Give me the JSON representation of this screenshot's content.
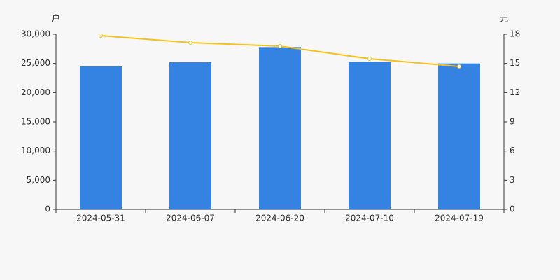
{
  "chart_data": {
    "type": "bar_line",
    "y_label": "户",
    "y2_label": "元",
    "categories": [
      "2024-05-31",
      "2024-06-07",
      "2024-06-20",
      "2024-07-10",
      "2024-07-19"
    ],
    "series": [
      {
        "type": "bar",
        "color": "#3482e2",
        "values": [
          24500,
          25200,
          27800,
          25300,
          25000
        ]
      },
      {
        "type": "line",
        "axis": "y2",
        "color": "#f5c21b",
        "values": [
          17.86,
          17.14,
          16.78,
          15.48,
          14.69
        ]
      }
    ],
    "ylim": [
      0,
      30000
    ],
    "yticks": [
      0,
      {
        "value": 5000,
        "label": "5,000"
      },
      {
        "value": 10000,
        "label": "10,000"
      },
      {
        "value": 15000,
        "label": "15,000"
      },
      {
        "value": 20000,
        "label": "20,000"
      },
      {
        "value": 25000,
        "label": "25,000"
      },
      {
        "value": 30000,
        "label": "30,000"
      }
    ],
    "y2lim": [
      0,
      18
    ],
    "y2ticks": [
      0,
      3,
      6,
      9,
      12,
      15,
      18
    ]
  }
}
